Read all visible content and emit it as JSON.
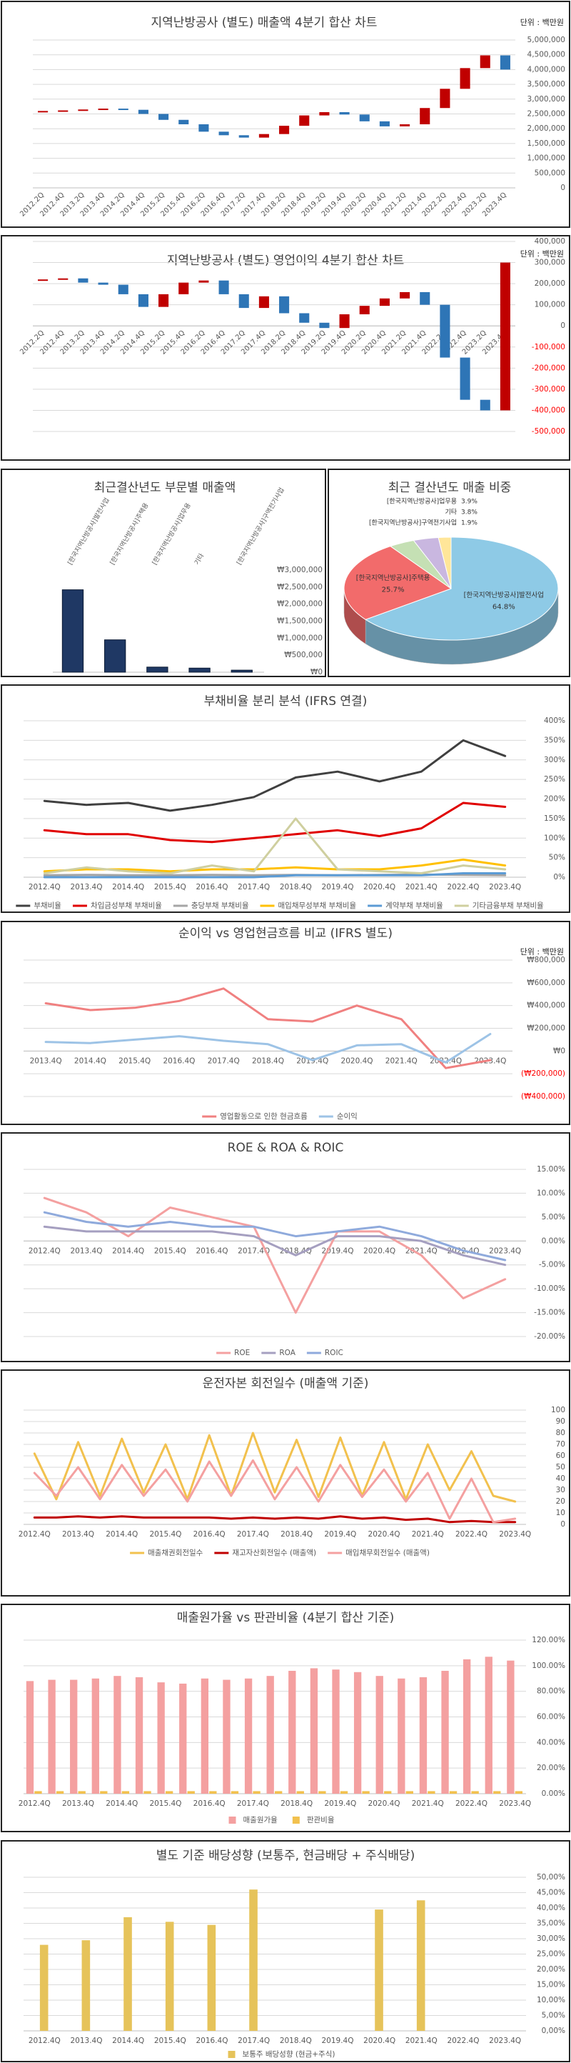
{
  "chart_data": [
    {
      "type": "waterfall",
      "title": "지역난방공사 (별도)    매출액  4분기 합산 차트",
      "unit": "단위 : 백만원",
      "categories": [
        "2012.2Q",
        "2012.4Q",
        "2013.2Q",
        "2013.4Q",
        "2014.2Q",
        "2014.4Q",
        "2015.2Q",
        "2015.4Q",
        "2016.2Q",
        "2016.4Q",
        "2017.2Q",
        "2017.4Q",
        "2018.2Q",
        "2018.4Q",
        "2019.2Q",
        "2019.4Q",
        "2020.2Q",
        "2020.4Q",
        "2021.2Q",
        "2021.4Q",
        "2022.2Q",
        "2022.4Q",
        "2023.2Q",
        "2023.4Q"
      ],
      "values": [
        2600000,
        2620000,
        2650000,
        2680000,
        2640000,
        2500000,
        2300000,
        2150000,
        1900000,
        1780000,
        1700000,
        1820000,
        2100000,
        2450000,
        2560000,
        2480000,
        2250000,
        2080000,
        2150000,
        2700000,
        3350000,
        4050000,
        4480000,
        4000000
      ],
      "up_color": "#c00000",
      "down_color": "#2e75b6",
      "ylim": [
        0,
        5000000
      ],
      "yticks": [
        0,
        {
          "value": 500000,
          "label": "500,000"
        },
        {
          "value": 1000000,
          "label": "1,000,000"
        },
        {
          "value": 1500000,
          "label": "1,500,000"
        },
        {
          "value": 2000000,
          "label": "2,000,000"
        },
        {
          "value": 2500000,
          "label": "2,500,000"
        },
        {
          "value": 3000000,
          "label": "3,000,000"
        },
        {
          "value": 3500000,
          "label": "3,500,000"
        },
        {
          "value": 4000000,
          "label": "4,000,000"
        },
        {
          "value": 4500000,
          "label": "4,500,000"
        },
        {
          "value": 5000000,
          "label": "5,000,000"
        }
      ],
      "grid": true
    },
    {
      "type": "waterfall",
      "title": "지역난방공사 (별도)    영업이익  4분기 합산 차트",
      "unit": "단위 : 백만원",
      "categories": [
        "2012.2Q",
        "2012.4Q",
        "2013.2Q",
        "2013.4Q",
        "2014.2Q",
        "2014.4Q",
        "2015.2Q",
        "2015.4Q",
        "2016.2Q",
        "2016.4Q",
        "2017.2Q",
        "2017.4Q",
        "2018.2Q",
        "2018.4Q",
        "2019.2Q",
        "2019.4Q",
        "2020.2Q",
        "2020.4Q",
        "2021.2Q",
        "2021.4Q",
        "2022.2Q",
        "2022.4Q",
        "2023.2Q",
        "2023.4Q"
      ],
      "values": [
        220000,
        225000,
        205000,
        195000,
        150000,
        90000,
        150000,
        205000,
        215000,
        150000,
        85000,
        140000,
        60000,
        15000,
        -10000,
        55000,
        95000,
        130000,
        160000,
        100000,
        -150000,
        -350000,
        -400000,
        300000
      ],
      "up_color": "#c00000",
      "down_color": "#2e75b6",
      "negative_tick_color": "#ff0000",
      "ylim": [
        -500000,
        400000
      ],
      "yticks": [
        {
          "value": -500000,
          "label": "-500,000"
        },
        {
          "value": -400000,
          "label": "-400,000"
        },
        {
          "value": -300000,
          "label": "-300,000"
        },
        {
          "value": -200000,
          "label": "-200,000"
        },
        {
          "value": -100000,
          "label": "-100,000"
        },
        0,
        {
          "value": 100000,
          "label": "100,000"
        },
        {
          "value": 200000,
          "label": "200,000"
        },
        {
          "value": 300000,
          "label": "300,000"
        },
        {
          "value": 400000,
          "label": "400,000"
        }
      ],
      "grid": true
    },
    {
      "type": "bar",
      "title": "최근결산년도 부문별 매출액",
      "categories": [
        "[한국지역난방공사]발전사업",
        "[한국지역난방공사]주택용",
        "[한국지역난방공사]업무용",
        "기타",
        "[한국지역난방공사]구역전기사업"
      ],
      "values": [
        2420000,
        950000,
        150000,
        120000,
        60000
      ],
      "color": "#1f3864",
      "ylim": [
        0,
        3000000
      ],
      "yticks": [
        {
          "value": 0,
          "label": "₩0"
        },
        {
          "value": 500000,
          "label": "₩500,000"
        },
        {
          "value": 1000000,
          "label": "₩1,000,000"
        },
        {
          "value": 1500000,
          "label": "₩1,500,000"
        },
        {
          "value": 2000000,
          "label": "₩2,000,000"
        },
        {
          "value": 2500000,
          "label": "₩2,500,000"
        },
        {
          "value": 3000000,
          "label": "₩3,000,000"
        }
      ],
      "grid": false
    },
    {
      "type": "pie",
      "title": "최근 결산년도 매출 비중",
      "categories": [
        "[한국지역난방공사]발전사업",
        "[한국지역난방공사]주택용",
        "[한국지역난방공사]업무용",
        "기타",
        "[한국지역난방공사]구역전기사업"
      ],
      "values": [
        64.8,
        25.7,
        3.9,
        3.8,
        1.9
      ],
      "value_labels": [
        "64.8%",
        "25.7%",
        "3.9%",
        "3.8%",
        "1.9%"
      ],
      "colors": [
        "#8ecae6",
        "#f26b6b",
        "#c5e0b4",
        "#c9b7e0",
        "#ffe699"
      ]
    },
    {
      "type": "line",
      "title": "부채비율 분리 분석 (IFRS 연결)",
      "categories": [
        "2012.4Q",
        "2013.4Q",
        "2014.4Q",
        "2015.4Q",
        "2016.4Q",
        "2017.4Q",
        "2018.4Q",
        "2019.4Q",
        "2020.4Q",
        "2021.4Q",
        "2022.4Q",
        "2023.4Q"
      ],
      "series": [
        {
          "name": "부채비율",
          "color": "#404040",
          "values": [
            195,
            185,
            190,
            170,
            185,
            205,
            255,
            270,
            245,
            270,
            350,
            310
          ]
        },
        {
          "name": "차입금성부채 부채비율",
          "color": "#e00000",
          "values": [
            120,
            110,
            110,
            95,
            90,
            100,
            110,
            120,
            105,
            125,
            190,
            180
          ]
        },
        {
          "name": "충당부채 부채비율",
          "color": "#a5a5a5",
          "values": [
            5,
            6,
            5,
            5,
            6,
            5,
            6,
            5,
            6,
            7,
            6,
            5
          ]
        },
        {
          "name": "매입채무성부채 부채비율",
          "color": "#ffc000",
          "values": [
            15,
            20,
            20,
            15,
            20,
            20,
            25,
            20,
            20,
            30,
            45,
            30
          ]
        },
        {
          "name": "계약부채 부채비율",
          "color": "#5b9bd5",
          "values": [
            0,
            0,
            0,
            0,
            0,
            0,
            5,
            5,
            5,
            5,
            10,
            10
          ]
        },
        {
          "name": "기타금융부채 부채비율",
          "color": "#cfcf9f",
          "values": [
            10,
            25,
            15,
            10,
            30,
            15,
            150,
            20,
            15,
            10,
            30,
            20
          ]
        }
      ],
      "ylim": [
        0,
        400
      ],
      "yticks": [
        {
          "value": 0,
          "label": "0%"
        },
        {
          "value": 50,
          "label": "50%"
        },
        {
          "value": 100,
          "label": "100%"
        },
        {
          "value": 150,
          "label": "150%"
        },
        {
          "value": 200,
          "label": "200%"
        },
        {
          "value": 250,
          "label": "250%"
        },
        {
          "value": 300,
          "label": "300%"
        },
        {
          "value": 350,
          "label": "350%"
        },
        {
          "value": 400,
          "label": "400%"
        }
      ],
      "grid": true,
      "legend": "bottom"
    },
    {
      "type": "line",
      "title": "순이익 vs 영업현금흐름 비교 (IFRS 별도)",
      "unit": "단위 : 백만원",
      "categories": [
        "2013.4Q",
        "2014.4Q",
        "2015.4Q",
        "2016.4Q",
        "2017.4Q",
        "2018.4Q",
        "2019.4Q",
        "2020.4Q",
        "2021.4Q",
        "2022.4Q",
        "2023.4Q"
      ],
      "series": [
        {
          "name": "영업활동으로 인한 현금흐름",
          "color": "#f08080",
          "values": [
            420000,
            360000,
            380000,
            440000,
            550000,
            280000,
            260000,
            400000,
            280000,
            -150000,
            -80000
          ]
        },
        {
          "name": "순이익",
          "color": "#9dc3e6",
          "values": [
            80000,
            70000,
            100000,
            130000,
            90000,
            60000,
            -80000,
            50000,
            60000,
            -100000,
            150000
          ]
        }
      ],
      "negative_tick_color": "#ff0000",
      "ylim": [
        -400000,
        800000
      ],
      "yticks": [
        {
          "value": -400000,
          "label": "(₩400,000)"
        },
        {
          "value": -200000,
          "label": "(₩200,000)"
        },
        {
          "value": 0,
          "label": "₩0"
        },
        {
          "value": 200000,
          "label": "₩200,000"
        },
        {
          "value": 400000,
          "label": "₩400,000"
        },
        {
          "value": 600000,
          "label": "₩600,000"
        },
        {
          "value": 800000,
          "label": "₩800,000"
        }
      ],
      "grid": true,
      "legend": "bottom"
    },
    {
      "type": "line",
      "title": "ROE & ROA & ROIC",
      "categories": [
        "2012.4Q",
        "2013.4Q",
        "2014.4Q",
        "2015.4Q",
        "2016.4Q",
        "2017.4Q",
        "2018.4Q",
        "2019.4Q",
        "2020.4Q",
        "2021.4Q",
        "2022.4Q",
        "2023.4Q"
      ],
      "series": [
        {
          "name": "ROE",
          "color": "#f4a0a0",
          "values": [
            9,
            6,
            1,
            7,
            5,
            3,
            -15,
            2,
            2,
            -3,
            -12,
            -8
          ]
        },
        {
          "name": "ROA",
          "color": "#a59fc0",
          "values": [
            3,
            2,
            2,
            2,
            2,
            1,
            -3,
            1,
            1,
            0,
            -3,
            -5
          ]
        },
        {
          "name": "ROIC",
          "color": "#8faadc",
          "values": [
            6,
            4,
            3,
            4,
            3,
            3,
            1,
            2,
            3,
            1,
            -2,
            -4
          ]
        }
      ],
      "ylim": [
        -20,
        15
      ],
      "yticks": [
        {
          "value": -20,
          "label": "-20.00%"
        },
        {
          "value": -15,
          "label": "-15.00%"
        },
        {
          "value": -10,
          "label": "-10.00%"
        },
        {
          "value": -5,
          "label": "-5.00%"
        },
        {
          "value": 0,
          "label": "0.00%"
        },
        {
          "value": 5,
          "label": "5.00%"
        },
        {
          "value": 10,
          "label": "10.00%"
        },
        {
          "value": 15,
          "label": "15.00%"
        }
      ],
      "grid": true,
      "legend": "bottom"
    },
    {
      "type": "line",
      "title": "운전자본 회전일수 (매출액 기준)",
      "categories": [
        "2012.4Q",
        null,
        "2013.4Q",
        null,
        "2014.4Q",
        null,
        "2015.4Q",
        null,
        "2016.4Q",
        null,
        "2017.4Q",
        null,
        "2018.4Q",
        null,
        "2019.4Q",
        null,
        "2020.4Q",
        null,
        "2021.4Q",
        null,
        "2022.4Q",
        null,
        "2023.4Q"
      ],
      "series": [
        {
          "name": "매출채권회전일수",
          "color": "#f2c14e",
          "values": [
            62,
            22,
            72,
            25,
            75,
            28,
            70,
            22,
            78,
            25,
            80,
            28,
            74,
            24,
            76,
            25,
            72,
            22,
            70,
            30,
            64,
            25,
            20
          ]
        },
        {
          "name": "재고자산회전일수 (매출액)",
          "color": "#c00000",
          "values": [
            6,
            6,
            7,
            6,
            7,
            6,
            6,
            6,
            6,
            5,
            6,
            5,
            6,
            5,
            7,
            5,
            6,
            4,
            5,
            2,
            3,
            2,
            2
          ]
        },
        {
          "name": "매입채무회전일수 (매출액)",
          "color": "#f4a0a0",
          "values": [
            45,
            25,
            50,
            22,
            52,
            25,
            48,
            20,
            55,
            25,
            56,
            22,
            50,
            20,
            52,
            24,
            48,
            20,
            45,
            5,
            40,
            2,
            5
          ]
        }
      ],
      "ylim": [
        0,
        100
      ],
      "yticks": [
        0,
        10,
        20,
        30,
        40,
        50,
        60,
        70,
        80,
        90,
        100
      ],
      "grid": true,
      "legend": "bottom"
    },
    {
      "type": "bar",
      "title": "매출원가율 vs 판관비율 (4분기 합산 기준)",
      "categories": [
        "2012.4Q",
        null,
        "2013.4Q",
        null,
        "2014.4Q",
        null,
        "2015.4Q",
        null,
        "2016.4Q",
        null,
        "2017.4Q",
        null,
        "2018.4Q",
        null,
        "2019.4Q",
        null,
        "2020.4Q",
        null,
        "2021.4Q",
        null,
        "2022.4Q",
        null,
        "2023.4Q"
      ],
      "series": [
        {
          "name": "매출원가율",
          "color": "#f4a0a0",
          "values": [
            88,
            89,
            89,
            90,
            92,
            91,
            87,
            86,
            90,
            89,
            90,
            92,
            96,
            98,
            97,
            95,
            92,
            90,
            91,
            96,
            105,
            107,
            104
          ]
        },
        {
          "name": "판관비율",
          "color": "#f2c14e",
          "values": [
            2,
            2,
            2,
            2,
            2,
            2,
            2,
            2,
            2,
            2,
            2,
            2,
            2,
            2,
            2,
            2,
            2,
            2,
            2,
            2,
            2,
            2,
            2
          ]
        }
      ],
      "ylim": [
        0,
        120
      ],
      "yticks": [
        {
          "value": 0,
          "label": "0.00%"
        },
        {
          "value": 20,
          "label": "20.00%"
        },
        {
          "value": 40,
          "label": "40.00%"
        },
        {
          "value": 60,
          "label": "60.00%"
        },
        {
          "value": 80,
          "label": "80.00%"
        },
        {
          "value": 100,
          "label": "100.00%"
        },
        {
          "value": 120,
          "label": "120.00%"
        }
      ],
      "grid": true,
      "legend": "bottom"
    },
    {
      "type": "bar",
      "title": "별도 기준 배당성향 (보통주, 현금배당 + 주식배당)",
      "categories": [
        "2012.4Q",
        "2013.4Q",
        "2014.4Q",
        "2015.4Q",
        "2016.4Q",
        "2017.4Q",
        "2018.4Q",
        "2019.4Q",
        "2020.4Q",
        "2021.4Q",
        "2022.4Q",
        "2023.4Q"
      ],
      "series": [
        {
          "name": "보통주 배당성향 (현금+주식)",
          "color": "#e6c35a",
          "values": [
            28,
            29.5,
            37,
            35.5,
            34.5,
            46,
            null,
            null,
            39.5,
            42.5,
            null,
            null
          ]
        }
      ],
      "ylim": [
        0,
        50
      ],
      "yticks": [
        {
          "value": 0,
          "label": "0,00%"
        },
        {
          "value": 5,
          "label": "5,00%"
        },
        {
          "value": 10,
          "label": "10,00%"
        },
        {
          "value": 15,
          "label": "15,00%"
        },
        {
          "value": 20,
          "label": "20,00%"
        },
        {
          "value": 25,
          "label": "25,00%"
        },
        {
          "value": 30,
          "label": "30,00%"
        },
        {
          "value": 35,
          "label": "35,00%"
        },
        {
          "value": 40,
          "label": "40,00%"
        },
        {
          "value": 45,
          "label": "45,00%"
        },
        {
          "value": 50,
          "label": "50,00%"
        }
      ],
      "grid": true,
      "legend": "bottom"
    }
  ]
}
